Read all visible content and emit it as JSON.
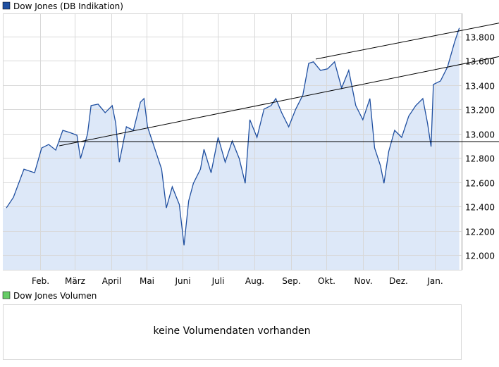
{
  "chart_data": {
    "type": "area",
    "legend": [
      {
        "label": "Dow Jones (DB Indikation)",
        "color": "#1f4fa0"
      },
      {
        "label": "Dow Jones Volumen",
        "color": "#66cc66"
      }
    ],
    "legend_placement": "top-left",
    "grid": true,
    "y_axis_side": "right",
    "ylim": [
      11880,
      13990
    ],
    "xlim": [
      "2011-12-31",
      "2013-01-24"
    ],
    "yticks": [
      {
        "value": 12000,
        "label": "12.000"
      },
      {
        "value": 12200,
        "label": "12.200"
      },
      {
        "value": 12400,
        "label": "12.400"
      },
      {
        "value": 12600,
        "label": "12.600"
      },
      {
        "value": 12800,
        "label": "12.800"
      },
      {
        "value": 13000,
        "label": "13.000"
      },
      {
        "value": 13200,
        "label": "13.200"
      },
      {
        "value": 13400,
        "label": "13.400"
      },
      {
        "value": 13600,
        "label": "13.600"
      },
      {
        "value": 13800,
        "label": "13.800"
      }
    ],
    "xticks": [
      {
        "date": "2012-02-01",
        "label": "Feb."
      },
      {
        "date": "2012-03-01",
        "label": "März"
      },
      {
        "date": "2012-04-01",
        "label": "April"
      },
      {
        "date": "2012-05-01",
        "label": "Mai"
      },
      {
        "date": "2012-06-01",
        "label": "Juni"
      },
      {
        "date": "2012-07-01",
        "label": "Juli"
      },
      {
        "date": "2012-08-01",
        "label": "Aug."
      },
      {
        "date": "2012-09-01",
        "label": "Sep."
      },
      {
        "date": "2012-10-01",
        "label": "Okt."
      },
      {
        "date": "2012-11-01",
        "label": "Nov."
      },
      {
        "date": "2012-12-01",
        "label": "Dez."
      },
      {
        "date": "2013-01-01",
        "label": "Jan."
      }
    ],
    "series": [
      {
        "name": "Dow Jones (DB Indikation)",
        "color": "#1f4fa0",
        "fill": "#dde8f8",
        "points": [
          [
            "2012-01-03",
            12389
          ],
          [
            "2012-01-09",
            12476
          ],
          [
            "2012-01-18",
            12708
          ],
          [
            "2012-01-27",
            12679
          ],
          [
            "2012-02-02",
            12882
          ],
          [
            "2012-02-08",
            12911
          ],
          [
            "2012-02-14",
            12865
          ],
          [
            "2012-02-20",
            13028
          ],
          [
            "2012-02-26",
            13010
          ],
          [
            "2012-03-03",
            12987
          ],
          [
            "2012-03-06",
            12795
          ],
          [
            "2012-03-12",
            12999
          ],
          [
            "2012-03-15",
            13231
          ],
          [
            "2012-03-21",
            13243
          ],
          [
            "2012-03-27",
            13173
          ],
          [
            "2012-04-02",
            13231
          ],
          [
            "2012-04-05",
            13086
          ],
          [
            "2012-04-08",
            12766
          ],
          [
            "2012-04-14",
            13057
          ],
          [
            "2012-04-20",
            13028
          ],
          [
            "2012-04-26",
            13260
          ],
          [
            "2012-04-29",
            13289
          ],
          [
            "2012-05-02",
            13057
          ],
          [
            "2012-05-08",
            12882
          ],
          [
            "2012-05-14",
            12708
          ],
          [
            "2012-05-18",
            12389
          ],
          [
            "2012-05-23",
            12563
          ],
          [
            "2012-05-29",
            12418
          ],
          [
            "2012-06-02",
            12081
          ],
          [
            "2012-06-06",
            12447
          ],
          [
            "2012-06-10",
            12592
          ],
          [
            "2012-06-16",
            12708
          ],
          [
            "2012-06-19",
            12871
          ],
          [
            "2012-06-25",
            12679
          ],
          [
            "2012-07-01",
            12970
          ],
          [
            "2012-07-07",
            12766
          ],
          [
            "2012-07-13",
            12940
          ],
          [
            "2012-07-19",
            12795
          ],
          [
            "2012-07-24",
            12592
          ],
          [
            "2012-07-28",
            13115
          ],
          [
            "2012-08-03",
            12970
          ],
          [
            "2012-08-09",
            13202
          ],
          [
            "2012-08-15",
            13231
          ],
          [
            "2012-08-19",
            13289
          ],
          [
            "2012-08-24",
            13173
          ],
          [
            "2012-08-30",
            13057
          ],
          [
            "2012-09-05",
            13202
          ],
          [
            "2012-09-11",
            13318
          ],
          [
            "2012-09-16",
            13579
          ],
          [
            "2012-09-20",
            13591
          ],
          [
            "2012-09-26",
            13521
          ],
          [
            "2012-10-02",
            13533
          ],
          [
            "2012-10-08",
            13591
          ],
          [
            "2012-10-14",
            13376
          ],
          [
            "2012-10-20",
            13521
          ],
          [
            "2012-10-26",
            13231
          ],
          [
            "2012-11-01",
            13115
          ],
          [
            "2012-11-07",
            13289
          ],
          [
            "2012-11-11",
            12882
          ],
          [
            "2012-11-16",
            12737
          ],
          [
            "2012-11-19",
            12592
          ],
          [
            "2012-11-23",
            12853
          ],
          [
            "2012-11-28",
            13028
          ],
          [
            "2012-12-04",
            12970
          ],
          [
            "2012-12-10",
            13144
          ],
          [
            "2012-12-16",
            13231
          ],
          [
            "2012-12-22",
            13289
          ],
          [
            "2012-12-26",
            13086
          ],
          [
            "2012-12-29",
            12894
          ],
          [
            "2012-12-31",
            13405
          ],
          [
            "2013-01-06",
            13434
          ],
          [
            "2013-01-12",
            13550
          ],
          [
            "2013-01-18",
            13754
          ],
          [
            "2013-01-22",
            13870
          ]
        ]
      }
    ],
    "trendlines": [
      {
        "from": [
          "2012-02-17",
          12935
        ],
        "to": [
          "2013-01-22",
          12935
        ]
      },
      {
        "from": [
          "2012-02-17",
          12900
        ],
        "to": [
          "2013-01-22",
          13568
        ]
      },
      {
        "from": [
          "2012-09-22",
          13614
        ],
        "to": [
          "2013-01-22",
          13846
        ]
      }
    ]
  },
  "volume_panel": {
    "message": "keine Volumendaten vorhanden"
  }
}
